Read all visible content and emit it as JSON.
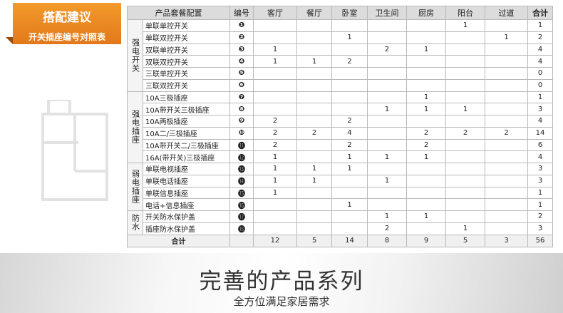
{
  "badge": {
    "title": "搭配建议",
    "subtitle": "开关插座编号对照表"
  },
  "table": {
    "header": [
      "产品套餐配置",
      "编号",
      "客厅",
      "餐厅",
      "卧室",
      "卫生间",
      "厨房",
      "阳台",
      "过道",
      "合计"
    ],
    "groups": [
      {
        "label": "强电开关",
        "rows": [
          {
            "name": "单联单控开关",
            "number": "❶",
            "cells": [
              null,
              null,
              null,
              null,
              null,
              1,
              null,
              1
            ]
          },
          {
            "name": "单联双控开关",
            "number": "❷",
            "cells": [
              null,
              null,
              1,
              null,
              null,
              null,
              1,
              2
            ]
          },
          {
            "name": "双联单控开关",
            "number": "❸",
            "cells": [
              1,
              null,
              null,
              2,
              1,
              null,
              null,
              4
            ]
          },
          {
            "name": "双联双控开关",
            "number": "❹",
            "cells": [
              1,
              1,
              2,
              null,
              null,
              null,
              null,
              4
            ]
          },
          {
            "name": "三联单控开关",
            "number": "❺",
            "cells": [
              null,
              null,
              null,
              null,
              null,
              null,
              null,
              0
            ]
          },
          {
            "name": "三联双控开关",
            "number": "❻",
            "cells": [
              null,
              null,
              null,
              null,
              null,
              null,
              null,
              0
            ]
          }
        ]
      },
      {
        "label": "强电插座",
        "rows": [
          {
            "name": "10A三极插座",
            "number": "❼",
            "cells": [
              null,
              null,
              null,
              null,
              1,
              null,
              null,
              1
            ]
          },
          {
            "name": "10A带开关三极插座",
            "number": "❽",
            "cells": [
              null,
              null,
              null,
              1,
              1,
              1,
              null,
              3
            ]
          },
          {
            "name": "10A两极插座",
            "number": "❾",
            "cells": [
              2,
              null,
              2,
              null,
              null,
              null,
              null,
              4
            ]
          },
          {
            "name": "10A二/三极插座",
            "number": "❿",
            "cells": [
              2,
              2,
              4,
              null,
              2,
              2,
              2,
              14
            ]
          },
          {
            "name": "10A带开关二/三极插座",
            "number": "⓫",
            "cells": [
              2,
              null,
              2,
              null,
              2,
              null,
              null,
              6
            ]
          },
          {
            "name": "16A(带开关)三极插座",
            "number": "⓬",
            "cells": [
              1,
              null,
              1,
              1,
              1,
              null,
              null,
              4
            ]
          }
        ]
      },
      {
        "label": "弱电插座",
        "rows": [
          {
            "name": "单联电视插座",
            "number": "⓭",
            "cells": [
              1,
              1,
              1,
              null,
              null,
              null,
              null,
              3
            ]
          },
          {
            "name": "单联电话插座",
            "number": "⓮",
            "cells": [
              1,
              1,
              null,
              1,
              null,
              null,
              null,
              3
            ]
          },
          {
            "name": "单联信息插座",
            "number": "⓯",
            "cells": [
              1,
              null,
              null,
              null,
              null,
              null,
              null,
              1
            ]
          },
          {
            "name": "电话+信息插座",
            "number": "⓰",
            "cells": [
              null,
              null,
              1,
              null,
              null,
              null,
              null,
              1
            ]
          }
        ]
      },
      {
        "label": "防水",
        "rows": [
          {
            "name": "开关防水保护盖",
            "number": "⓱",
            "cells": [
              null,
              null,
              null,
              1,
              1,
              null,
              null,
              2
            ]
          },
          {
            "name": "插座防水保护盖",
            "number": "⓲",
            "cells": [
              null,
              null,
              null,
              2,
              null,
              1,
              null,
              3
            ]
          }
        ]
      }
    ],
    "total": {
      "label": "合计",
      "cells": [
        12,
        5,
        14,
        8,
        9,
        5,
        3,
        56
      ]
    }
  },
  "banner": {
    "title": "完善的产品系列",
    "subtitle": "全方位满足家居需求"
  }
}
